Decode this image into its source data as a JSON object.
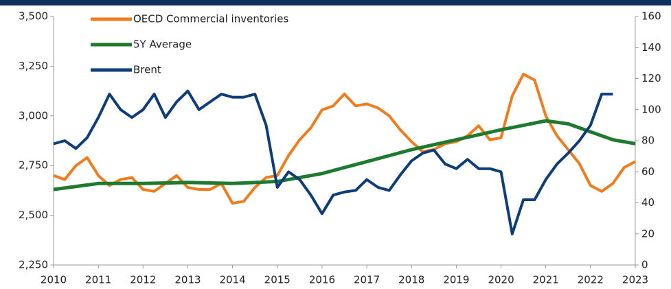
{
  "chart_data": {
    "type": "line",
    "xlim": [
      2010,
      2023
    ],
    "xticks": [
      2010,
      2011,
      2012,
      2013,
      2014,
      2015,
      2016,
      2017,
      2018,
      2019,
      2020,
      2021,
      2022,
      2023
    ],
    "ylim": [
      2250,
      3500
    ],
    "yticks": [
      {
        "value": 2250,
        "label": "2,250"
      },
      {
        "value": 2500,
        "label": "2,500"
      },
      {
        "value": 2750,
        "label": "2,750"
      },
      {
        "value": 3000,
        "label": "3,000"
      },
      {
        "value": 3250,
        "label": "3,250"
      },
      {
        "value": 3500,
        "label": "3,500"
      }
    ],
    "y2lim": [
      0,
      160
    ],
    "y2ticks": [
      0,
      20,
      40,
      60,
      80,
      100,
      120,
      140,
      160
    ],
    "series": [
      {
        "name": "OECD Commercial inventories",
        "color": "#f07c1e",
        "x": [
          2010,
          2010.25,
          2010.5,
          2010.75,
          2011,
          2011.25,
          2011.5,
          2011.75,
          2012,
          2012.25,
          2012.5,
          2012.75,
          2013,
          2013.25,
          2013.5,
          2013.75,
          2014,
          2014.25,
          2014.5,
          2014.75,
          2015,
          2015.25,
          2015.5,
          2015.75,
          2016,
          2016.25,
          2016.5,
          2016.75,
          2017,
          2017.25,
          2017.5,
          2017.75,
          2018,
          2018.25,
          2018.5,
          2018.75,
          2019,
          2019.25,
          2019.5,
          2019.75,
          2020,
          2020.25,
          2020.5,
          2020.75,
          2021,
          2021.25,
          2021.5,
          2021.75,
          2022,
          2022.25,
          2022.5,
          2022.75,
          2023
        ],
        "values": [
          2700,
          2680,
          2750,
          2790,
          2700,
          2650,
          2680,
          2690,
          2630,
          2620,
          2660,
          2700,
          2640,
          2630,
          2630,
          2660,
          2560,
          2570,
          2640,
          2690,
          2700,
          2800,
          2880,
          2940,
          3030,
          3050,
          3110,
          3050,
          3060,
          3040,
          3000,
          2930,
          2870,
          2820,
          2830,
          2860,
          2870,
          2900,
          2950,
          2880,
          2890,
          3100,
          3210,
          3180,
          3000,
          2900,
          2830,
          2760,
          2650,
          2620,
          2660,
          2740,
          2770
        ]
      },
      {
        "name": "5Y Average",
        "color": "#1e7a2e",
        "x": [
          2010,
          2011,
          2012,
          2013,
          2014,
          2015,
          2016,
          2017,
          2018,
          2019,
          2020,
          2021,
          2021.5,
          2022,
          2022.5,
          2023
        ],
        "values": [
          2630,
          2660,
          2660,
          2665,
          2660,
          2670,
          2710,
          2770,
          2830,
          2880,
          2930,
          2975,
          2960,
          2920,
          2880,
          2860
        ]
      },
      {
        "name": "Brent",
        "color": "#0d3d7a",
        "axis": "y2",
        "x": [
          2010,
          2010.25,
          2010.5,
          2010.75,
          2011,
          2011.25,
          2011.5,
          2011.75,
          2012,
          2012.25,
          2012.5,
          2012.75,
          2013,
          2013.25,
          2013.5,
          2013.75,
          2014,
          2014.25,
          2014.5,
          2014.75,
          2015,
          2015.25,
          2015.5,
          2015.75,
          2016,
          2016.25,
          2016.5,
          2016.75,
          2017,
          2017.25,
          2017.5,
          2017.75,
          2018,
          2018.25,
          2018.5,
          2018.75,
          2019,
          2019.25,
          2019.5,
          2019.75,
          2020,
          2020.25,
          2020.5,
          2020.75,
          2021,
          2021.25,
          2021.5,
          2021.75,
          2022,
          2022.25,
          2022.5
        ],
        "values": [
          78,
          80,
          75,
          82,
          95,
          110,
          100,
          95,
          100,
          110,
          95,
          105,
          112,
          100,
          105,
          110,
          108,
          108,
          110,
          90,
          50,
          60,
          55,
          45,
          33,
          45,
          47,
          48,
          55,
          50,
          48,
          58,
          67,
          72,
          74,
          65,
          62,
          68,
          62,
          62,
          60,
          20,
          42,
          42,
          55,
          65,
          72,
          80,
          90,
          110,
          110
        ]
      }
    ]
  }
}
